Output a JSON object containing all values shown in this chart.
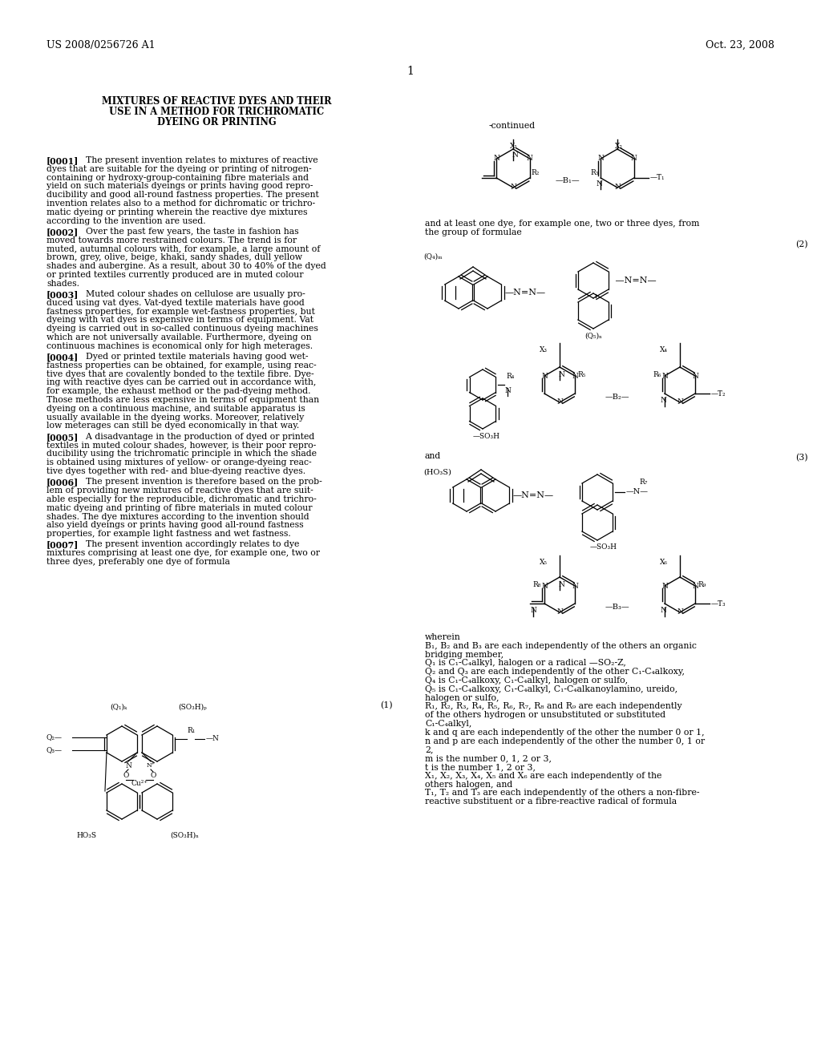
{
  "bg_color": "#ffffff",
  "header_left": "US 2008/0256726 A1",
  "header_right": "Oct. 23, 2008",
  "page_number": "1",
  "title_lines": [
    "MIXTURES OF REACTIVE DYES AND THEIR",
    "USE IN A METHOD FOR TRICHROMATIC",
    "DYEING OR PRINTING"
  ],
  "para_data": [
    [
      "[0001]",
      "    The present invention relates to mixtures of reactive\ndyes that are suitable for the dyeing or printing of nitrogen-\ncontaining or hydroxy-group-containing fibre materials and\nyield on such materials dyeings or prints having good repro-\nducibility and good all-round fastness properties. The present\ninvention relates also to a method for dichromatic or trichro-\nmatic dyeing or printing wherein the reactive dye mixtures\naccording to the invention are used."
    ],
    [
      "[0002]",
      "    Over the past few years, the taste in fashion has\nmoved towards more restrained colours. The trend is for\nmuted, autumnal colours with, for example, a large amount of\nbrown, grey, olive, beige, khaki, sandy shades, dull yellow\nshades and aubergine. As a result, about 30 to 40% of the dyed\nor printed textiles currently produced are in muted colour\nshades."
    ],
    [
      "[0003]",
      "    Muted colour shades on cellulose are usually pro-\nduced using vat dyes. Vat-dyed textile materials have good\nfastness properties, for example wet-fastness properties, but\ndyeing with vat dyes is expensive in terms of equipment. Vat\ndyeing is carried out in so-called continuous dyeing machines\nwhich are not universally available. Furthermore, dyeing on\ncontinuous machines is economical only for high meterages."
    ],
    [
      "[0004]",
      "    Dyed or printed textile materials having good wet-\nfastness properties can be obtained, for example, using reac-\ntive dyes that are covalently bonded to the textile fibre. Dye-\ning with reactive dyes can be carried out in accordance with,\nfor example, the exhaust method or the pad-dyeing method.\nThose methods are less expensive in terms of equipment than\ndyeing on a continuous machine, and suitable apparatus is\nusually available in the dyeing works. Moreover, relatively\nlow meterages can still be dyed economically in that way."
    ],
    [
      "[0005]",
      "    A disadvantage in the production of dyed or printed\ntextiles in muted colour shades, however, is their poor repro-\nducibility using the trichromatic principle in which the shade\nis obtained using mixtures of yellow- or orange-dyeing reac-\ntive dyes together with red- and blue-dyeing reactive dyes."
    ],
    [
      "[0006]",
      "    The present invention is therefore based on the prob-\nlem of providing new mixtures of reactive dyes that are suit-\nable especially for the reproducible, dichromatic and trichro-\nmatic dyeing and printing of fibre materials in muted colour\nshades. The dye mixtures according to the invention should\nalso yield dyeings or prints having good all-round fastness\nproperties, for example light fastness and wet fastness."
    ],
    [
      "[0007]",
      "    The present invention accordingly relates to dye\nmixtures comprising at least one dye, for example one, two or\nthree dyes, preferably one dye of formula"
    ]
  ],
  "wherein_lines": [
    "wherein",
    "B₁, B₂ and B₃ are each independently of the others an organic",
    "bridging member,",
    "Q₁ is C₁-C₄alkyl, halogen or a radical —SO₂-Z,",
    "Q₂ and Q₃ are each independently of the other C₁-C₄alkoxy,",
    "Q₄ is C₁-C₄alkoxy, C₁-C₄alkyl, halogen or sulfo,",
    "Q₅ is C₁-C₄alkoxy, C₁-C₄alkyl, C₁-C₄alkanoylamino, ureido,",
    "halogen or sulfo,",
    "R₁, R₂, R₃, R₄, R₅, R₆, R₇, R₈ and R₉ are each independently",
    "of the others hydrogen or unsubstituted or substituted",
    "C₁-C₄alkyl,",
    "k and q are each independently of the other the number 0 or 1,",
    "n and p are each independently of the other the number 0, 1 or",
    "2,",
    "m is the number 0, 1, 2 or 3,",
    "t is the number 1, 2 or 3,",
    "X₁, X₂, X₃, X₄, X₅ and X₆ are each independently of the",
    "others halogen, and",
    "T₁, T₂ and T₃ are each independently of the others a non-fibre-",
    "reactive substituent or a fibre-reactive radical of formula"
  ]
}
